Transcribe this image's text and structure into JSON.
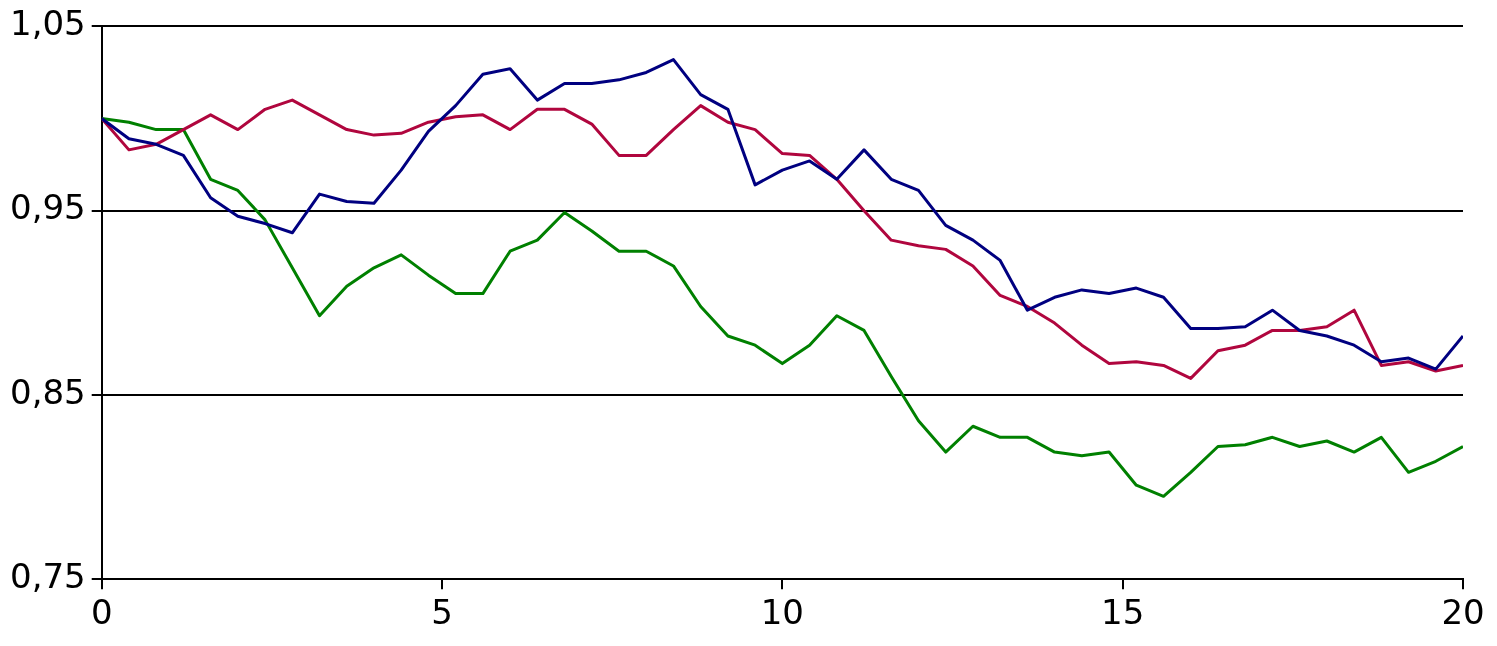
{
  "chart_data": {
    "type": "line",
    "x": [
      0,
      0.4,
      0.8,
      1.2,
      1.6,
      2.0,
      2.4,
      2.8,
      3.2,
      3.6,
      4.0,
      4.4,
      4.8,
      5.2,
      5.6,
      6.0,
      6.4,
      6.8,
      7.2,
      7.6,
      8.0,
      8.4,
      8.8,
      9.2,
      9.6,
      10.0,
      10.4,
      10.8,
      11.2,
      11.6,
      12.0,
      12.4,
      12.8,
      13.2,
      13.6,
      14.0,
      14.4,
      14.8,
      15.2,
      15.6,
      16.0,
      16.4,
      16.8,
      17.2,
      17.6,
      18.0,
      18.4,
      18.8,
      19.2,
      19.6,
      20.0
    ],
    "series": [
      {
        "color": "#000080",
        "values": [
          1.0,
          0.989,
          0.986,
          0.98,
          0.957,
          0.947,
          0.943,
          0.938,
          0.959,
          0.955,
          0.954,
          0.972,
          0.993,
          1.007,
          1.024,
          1.027,
          1.01,
          1.019,
          1.019,
          1.021,
          1.025,
          1.032,
          1.013,
          1.005,
          0.964,
          0.972,
          0.977,
          0.967,
          0.983,
          0.967,
          0.961,
          0.942,
          0.934,
          0.923,
          0.896,
          0.903,
          0.907,
          0.905,
          0.908,
          0.903,
          0.886,
          0.886,
          0.887,
          0.896,
          0.885,
          0.882,
          0.877,
          0.868,
          0.87,
          0.864,
          0.882
        ]
      },
      {
        "color": "#b0063e",
        "values": [
          1.0,
          0.983,
          0.986,
          0.994,
          1.002,
          0.994,
          1.005,
          1.01,
          1.002,
          0.994,
          0.991,
          0.992,
          0.998,
          1.001,
          1.002,
          0.994,
          1.005,
          1.005,
          0.997,
          0.98,
          0.98,
          0.994,
          1.007,
          0.998,
          0.994,
          0.981,
          0.98,
          0.967,
          0.95,
          0.934,
          0.931,
          0.929,
          0.92,
          0.904,
          0.898,
          0.889,
          0.877,
          0.867,
          0.868,
          0.866,
          0.859,
          0.874,
          0.877,
          0.885,
          0.885,
          0.887,
          0.896,
          0.866,
          0.868,
          0.863,
          0.866
        ]
      },
      {
        "color": "#008000",
        "values": [
          1.0,
          0.998,
          0.994,
          0.994,
          0.967,
          0.961,
          0.945,
          0.919,
          0.893,
          0.909,
          0.919,
          0.926,
          0.915,
          0.905,
          0.905,
          0.928,
          0.934,
          0.949,
          0.939,
          0.928,
          0.928,
          0.92,
          0.898,
          0.882,
          0.877,
          0.867,
          0.877,
          0.893,
          0.885,
          0.86,
          0.836,
          0.819,
          0.833,
          0.827,
          0.827,
          0.819,
          0.817,
          0.819,
          0.801,
          0.795,
          0.808,
          0.822,
          0.823,
          0.827,
          0.822,
          0.825,
          0.819,
          0.827,
          0.808,
          0.814,
          0.822
        ]
      }
    ],
    "xlim": [
      0,
      20
    ],
    "xticks": [
      0,
      5,
      10,
      15,
      20
    ],
    "ylim": [
      0.75,
      1.05
    ],
    "yticks": [
      {
        "value": 0.75,
        "label": "0,75"
      },
      {
        "value": 0.85,
        "label": "0,85"
      },
      {
        "value": 0.95,
        "label": "0,95"
      },
      {
        "value": 1.05,
        "label": "1,05"
      }
    ],
    "grid": "y",
    "legend": false,
    "marker": "none",
    "line_style": "solid"
  }
}
